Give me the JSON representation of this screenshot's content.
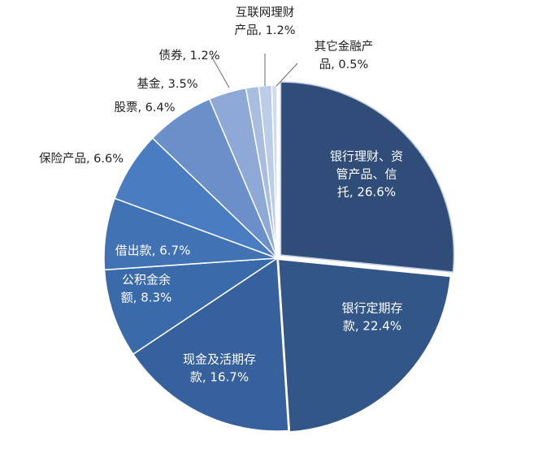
{
  "chart_data": {
    "type": "pie",
    "title": "",
    "slices": [
      {
        "name": "银行理财、资管产品、信托",
        "value": 26.6,
        "label_lines": [
          "银行理财、资",
          "管产品、信",
          "托, 26.6%"
        ],
        "color": "#2f4d78"
      },
      {
        "name": "银行定期存款",
        "value": 22.4,
        "label_lines": [
          "银行定期存",
          "款, 22.4%"
        ],
        "color": "#335689"
      },
      {
        "name": "现金及活期存款",
        "value": 16.7,
        "label_lines": [
          "现金及活期存",
          "款, 16.7%"
        ],
        "color": "#36619c"
      },
      {
        "name": "公积金余额",
        "value": 8.3,
        "label_lines": [
          "公积金余",
          "额, 8.3%"
        ],
        "color": "#3b6aaa"
      },
      {
        "name": "借出款",
        "value": 6.7,
        "label_lines": [
          "借出款, 6.7%"
        ],
        "color": "#4172b4"
      },
      {
        "name": "保险产品",
        "value": 6.6,
        "label_lines": [
          "保险产品, 6.6%"
        ],
        "color": "#4a7cc1"
      },
      {
        "name": "股票",
        "value": 6.4,
        "label_lines": [
          "股票, 6.4%"
        ],
        "color": "#6b8fc8"
      },
      {
        "name": "基金",
        "value": 3.5,
        "label_lines": [
          "基金, 3.5%"
        ],
        "color": "#8ea9d5"
      },
      {
        "name": "债券",
        "value": 1.2,
        "label_lines": [
          "债券, 1.2%"
        ],
        "color": "#a8bde0"
      },
      {
        "name": "互联网理财产品",
        "value": 1.2,
        "label_lines": [
          "互联网理财",
          "产品, 1.2%"
        ],
        "color": "#bccde8"
      },
      {
        "name": "其它金融产品",
        "value": 0.5,
        "label_lines": [
          "其它金融产",
          "品, 0.5%"
        ],
        "color": "#cfdcef"
      }
    ],
    "colors": {
      "outline": "#ffffff",
      "leader_line": "#6b6b6b",
      "exploded_slice_border": "#b9c7dd"
    }
  }
}
